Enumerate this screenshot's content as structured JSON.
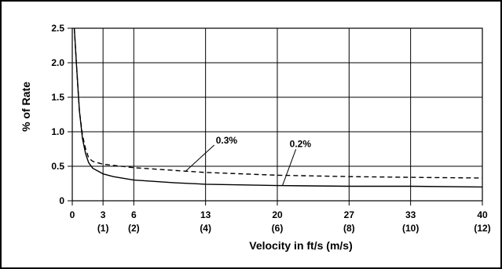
{
  "chart_data": {
    "type": "line",
    "title": "",
    "xlabel": "Velocity in ft/s (m/s)",
    "ylabel": "% of Rate",
    "xlim": [
      0,
      40
    ],
    "ylim": [
      0,
      2.5
    ],
    "grid": true,
    "x_ticks": [
      {
        "value": 0,
        "label": "0",
        "sublabel": ""
      },
      {
        "value": 3,
        "label": "3",
        "sublabel": "(1)"
      },
      {
        "value": 6,
        "label": "6",
        "sublabel": "(2)"
      },
      {
        "value": 13,
        "label": "13",
        "sublabel": "(4)"
      },
      {
        "value": 20,
        "label": "20",
        "sublabel": "(6)"
      },
      {
        "value": 27,
        "label": "27",
        "sublabel": "(8)"
      },
      {
        "value": 33,
        "label": "33",
        "sublabel": "(10)"
      },
      {
        "value": 40,
        "label": "40",
        "sublabel": "(12)"
      }
    ],
    "y_ticks": [
      {
        "value": 0,
        "label": "0"
      },
      {
        "value": 0.5,
        "label": "0.5"
      },
      {
        "value": 1.0,
        "label": "1.0"
      },
      {
        "value": 1.5,
        "label": "1.5"
      },
      {
        "value": 2.0,
        "label": "2.0"
      },
      {
        "value": 2.5,
        "label": "2.5"
      }
    ],
    "series": [
      {
        "name": "0.2%",
        "style": "solid",
        "x": [
          0.2,
          0.4,
          0.7,
          1.0,
          1.3,
          1.6,
          2.0,
          3.0,
          4.0,
          6.0,
          10.0,
          13.0,
          20.0,
          27.0,
          33.0,
          40.0
        ],
        "y": [
          2.5,
          2.0,
          1.3,
          0.9,
          0.68,
          0.55,
          0.47,
          0.39,
          0.35,
          0.3,
          0.26,
          0.24,
          0.22,
          0.21,
          0.21,
          0.2
        ]
      },
      {
        "name": "0.3%",
        "style": "dashed",
        "x": [
          0.2,
          0.4,
          0.7,
          1.0,
          1.3,
          1.6,
          2.0,
          3.0,
          6.0,
          10.0,
          13.0,
          20.0,
          27.0,
          33.0,
          40.0
        ],
        "y": [
          2.5,
          2.0,
          1.3,
          0.95,
          0.75,
          0.62,
          0.57,
          0.53,
          0.48,
          0.44,
          0.41,
          0.37,
          0.35,
          0.34,
          0.33
        ]
      }
    ],
    "annotations": [
      {
        "text": "0.3%",
        "series": "0.3%"
      },
      {
        "text": "0.2%",
        "series": "0.2%"
      }
    ]
  }
}
